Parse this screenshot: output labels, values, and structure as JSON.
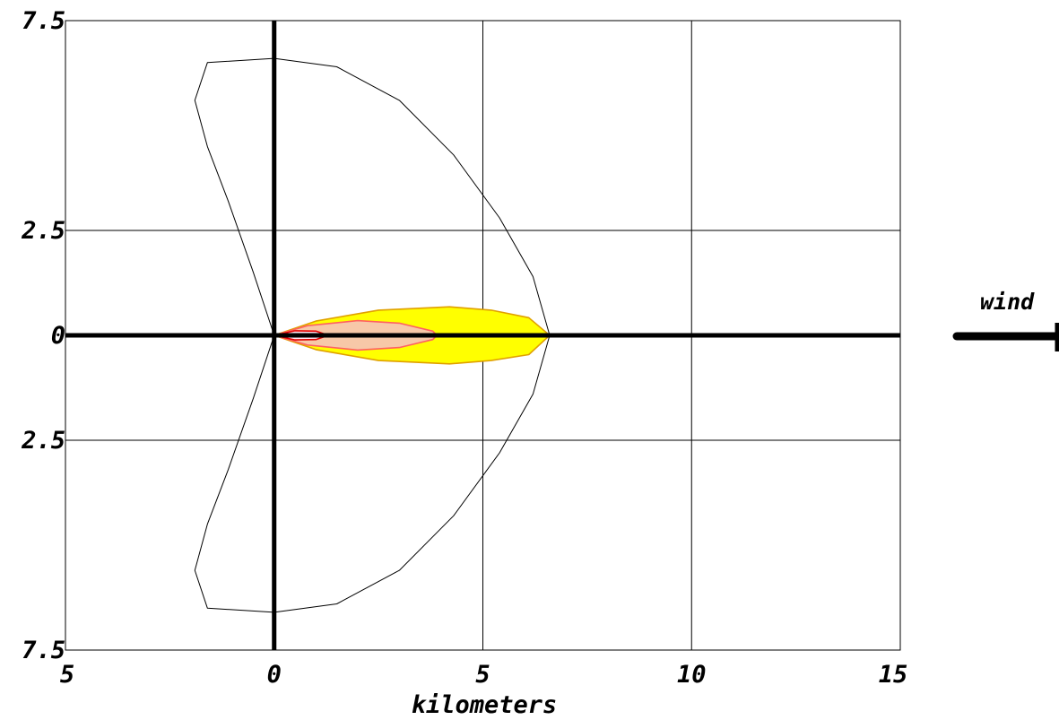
{
  "chart_data": {
    "type": "area",
    "title": "",
    "xlabel": "kilometers",
    "ylabel": "",
    "xlim": [
      -5,
      15
    ],
    "ylim": [
      -7.5,
      7.5
    ],
    "grid": true,
    "x_ticks": [
      -5,
      0,
      5,
      10,
      15
    ],
    "y_ticks": [
      7.5,
      2.5,
      0,
      -2.5,
      -7.5
    ],
    "x_tick_labels": [
      "5",
      "0",
      "5",
      "10",
      "15"
    ],
    "y_tick_labels": [
      "7.5",
      "2.5",
      "0",
      "2.5",
      "7.5"
    ],
    "series": [
      {
        "kind": "outline",
        "color": "#000000",
        "fill": "none",
        "points": [
          [
            0,
            0
          ],
          [
            -0.5,
            1.5
          ],
          [
            -1.1,
            3.2
          ],
          [
            -1.6,
            4.5
          ],
          [
            -1.9,
            5.6
          ],
          [
            -1.6,
            6.5
          ],
          [
            0,
            6.6
          ],
          [
            1.5,
            6.4
          ],
          [
            3.0,
            5.6
          ],
          [
            4.3,
            4.3
          ],
          [
            5.4,
            2.8
          ],
          [
            6.2,
            1.4
          ],
          [
            6.6,
            0
          ],
          [
            6.2,
            -1.4
          ],
          [
            5.4,
            -2.8
          ],
          [
            4.3,
            -4.3
          ],
          [
            3.0,
            -5.6
          ],
          [
            1.5,
            -6.4
          ],
          [
            0,
            -6.6
          ],
          [
            -1.6,
            -6.5
          ],
          [
            -1.9,
            -5.6
          ],
          [
            -1.6,
            -4.5
          ],
          [
            -1.1,
            -3.2
          ],
          [
            -0.5,
            -1.5
          ],
          [
            0,
            0
          ]
        ]
      },
      {
        "kind": "threat-zone",
        "color": "#e0a000",
        "fill": "#ffff00",
        "points": [
          [
            0,
            0
          ],
          [
            1.0,
            0.34
          ],
          [
            2.5,
            0.6
          ],
          [
            4.2,
            0.68
          ],
          [
            5.2,
            0.6
          ],
          [
            6.1,
            0.42
          ],
          [
            6.6,
            0
          ],
          [
            6.1,
            -0.46
          ],
          [
            5.2,
            -0.6
          ],
          [
            4.2,
            -0.68
          ],
          [
            2.5,
            -0.6
          ],
          [
            1.0,
            -0.34
          ],
          [
            0,
            0
          ]
        ]
      },
      {
        "kind": "threat-zone",
        "color": "#ff6060",
        "fill": "#f7c8a8",
        "points": [
          [
            0,
            0
          ],
          [
            0.8,
            0.23
          ],
          [
            2.0,
            0.35
          ],
          [
            3.0,
            0.29
          ],
          [
            3.8,
            0.1
          ],
          [
            3.9,
            0
          ],
          [
            3.8,
            -0.1
          ],
          [
            3.0,
            -0.29
          ],
          [
            2.0,
            -0.35
          ],
          [
            0.8,
            -0.23
          ],
          [
            0,
            0
          ]
        ]
      },
      {
        "kind": "threat-zone",
        "color": "#e00000",
        "fill": "#ffe4ee",
        "points": [
          [
            0,
            0
          ],
          [
            0.5,
            0.11
          ],
          [
            1.0,
            0.1
          ],
          [
            1.3,
            0
          ],
          [
            1.0,
            -0.1
          ],
          [
            0.5,
            -0.11
          ],
          [
            0,
            0
          ]
        ]
      }
    ],
    "annotations": [
      {
        "text": "wind",
        "direction": "right"
      }
    ]
  }
}
